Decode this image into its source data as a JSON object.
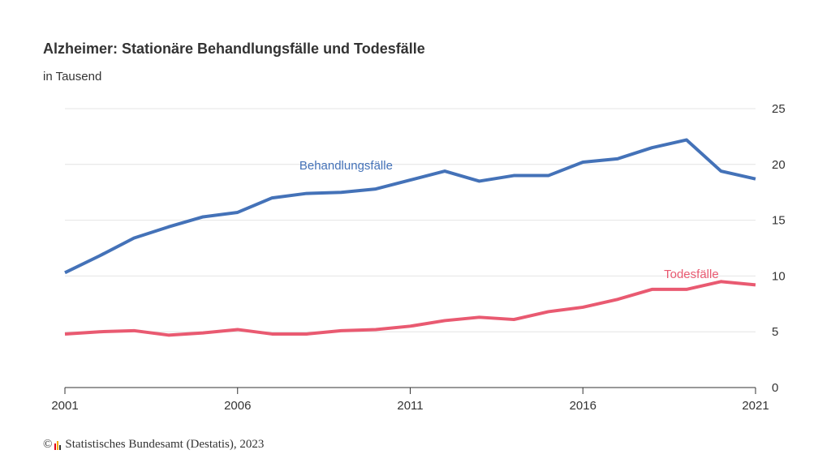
{
  "source": {
    "copyright_symbol": "©",
    "text": "Statistisches Bundesamt (Destatis), 2023",
    "logo_colors": [
      "#e1001a",
      "#f6a800",
      "#333333"
    ]
  },
  "chart_data": {
    "type": "line",
    "title": "Alzheimer: Stationäre Behandlungsfälle und Todesfälle",
    "subtitle": "in Tausend",
    "xlabel": "",
    "ylabel": "",
    "x": [
      2001,
      2002,
      2003,
      2004,
      2005,
      2006,
      2007,
      2008,
      2009,
      2010,
      2011,
      2012,
      2013,
      2014,
      2015,
      2016,
      2017,
      2018,
      2019,
      2020,
      2021
    ],
    "xlim": [
      2001,
      2021
    ],
    "ylim": [
      0,
      25
    ],
    "x_ticks": [
      "2001",
      "2006",
      "2011",
      "2016",
      "2021"
    ],
    "y_ticks": [
      "0",
      "5",
      "10",
      "15",
      "20",
      "25"
    ],
    "y_axis_position": "right",
    "grid": true,
    "legend": "inline labels",
    "series": [
      {
        "name": "Behandlungsfälle",
        "color": "#4472b8",
        "values": [
          10.3,
          11.8,
          13.4,
          14.4,
          15.3,
          15.7,
          17.0,
          17.4,
          17.5,
          17.8,
          18.6,
          19.4,
          18.5,
          19.0,
          19.0,
          20.2,
          20.5,
          21.5,
          22.2,
          19.4,
          18.7
        ]
      },
      {
        "name": "Todesfälle",
        "color": "#e95a71",
        "values": [
          4.8,
          5.0,
          5.1,
          4.7,
          4.9,
          5.2,
          4.8,
          4.8,
          5.1,
          5.2,
          5.5,
          6.0,
          6.3,
          6.1,
          6.8,
          7.2,
          7.9,
          8.8,
          8.8,
          9.5,
          9.2
        ]
      }
    ]
  }
}
